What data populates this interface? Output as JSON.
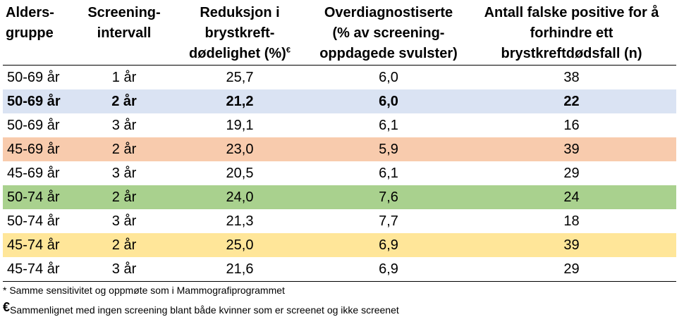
{
  "table": {
    "headers": [
      {
        "label": "Alders-\ngruppe",
        "align": "left"
      },
      {
        "label": "Screening-\nintervall",
        "align": "center"
      },
      {
        "label": "Reduksjon i\nbrystkreft-\ndødelighet (%)",
        "sup": "€",
        "align": "center"
      },
      {
        "label": "Overdiagnostiserte\n(% av screening-\noppdagede svulster)",
        "align": "center"
      },
      {
        "label": "Antall falske positive for å\nforhindre ett\nbrystkreftdødsfall (n)",
        "align": "center"
      }
    ],
    "rows": [
      {
        "cells": [
          "50-69 år",
          "1 år",
          "25,7",
          "6,0",
          "38"
        ],
        "bg": "#ffffff",
        "bold": false
      },
      {
        "cells": [
          "50-69 år",
          "2 år",
          "21,2",
          "6,0",
          "22"
        ],
        "bg": "#dae3f3",
        "bold": true
      },
      {
        "cells": [
          "50-69 år",
          "3 år",
          "19,1",
          "6,1",
          "16"
        ],
        "bg": "#ffffff",
        "bold": false
      },
      {
        "cells": [
          "45-69 år",
          "2 år",
          "23,0",
          "5,9",
          "39"
        ],
        "bg": "#f8cbad",
        "bold": false
      },
      {
        "cells": [
          "45-69 år",
          "3 år",
          "20,5",
          "6,1",
          "29"
        ],
        "bg": "#ffffff",
        "bold": false
      },
      {
        "cells": [
          "50-74 år",
          "2 år",
          "24,0",
          "7,6",
          "24"
        ],
        "bg": "#a9d18e",
        "bold": false
      },
      {
        "cells": [
          "50-74 år",
          "3 år",
          "21,3",
          "7,7",
          "18"
        ],
        "bg": "#ffffff",
        "bold": false
      },
      {
        "cells": [
          "45-74 år",
          "2 år",
          "25,0",
          "6,9",
          "39"
        ],
        "bg": "#ffe699",
        "bold": false
      },
      {
        "cells": [
          "45-74 år",
          "3 år",
          "21,6",
          "6,9",
          "29"
        ],
        "bg": "#ffffff",
        "bold": false
      }
    ]
  },
  "footnotes": {
    "note1": "* Samme sensitivitet og oppmøte som i Mammografiprogrammet",
    "note2_symbol": "€",
    "note2": "Sammenlignet med ingen screening blant både kvinner som er screenet og ikke screenet"
  }
}
